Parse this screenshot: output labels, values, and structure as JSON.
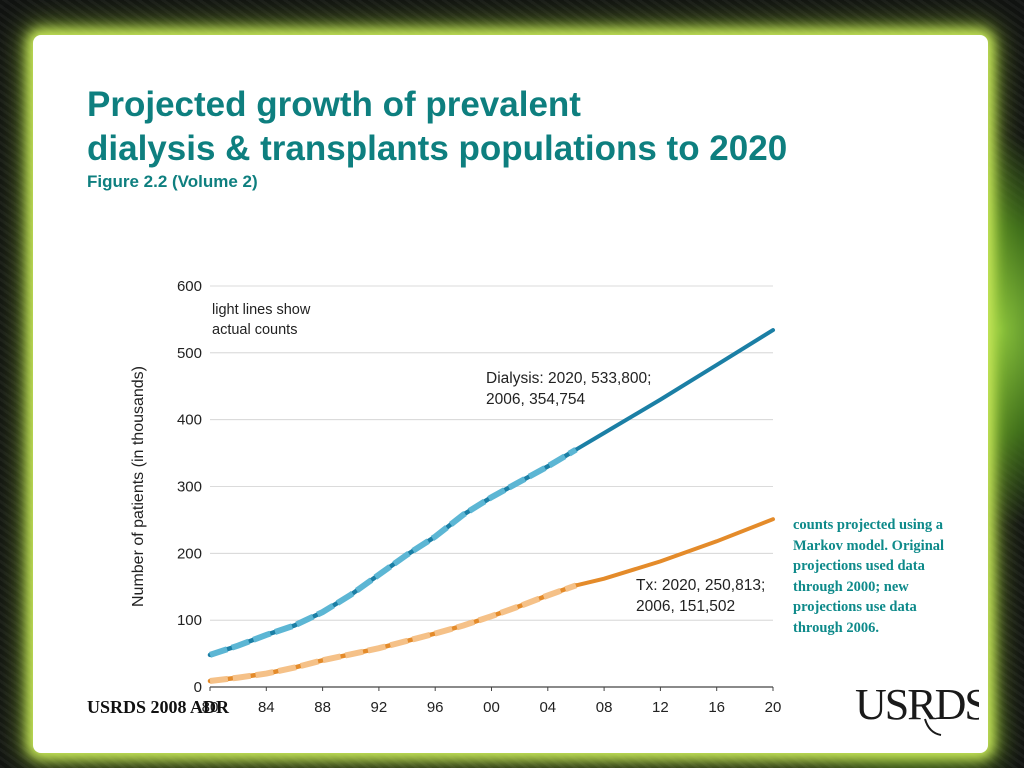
{
  "slide": {
    "title_line1": "Projected growth of prevalent",
    "title_line2": "dialysis & transplants populations to 2020",
    "subtitle": "Figure 2.2 (Volume 2)",
    "note": "counts projected using a Markov model. Original projections used data through 2000; new projections use data through 2006.",
    "footer": "USRDS 2008 ADR",
    "logo_text": "USRDS"
  },
  "colors": {
    "title": "#0e7f7f",
    "dialysis_actual": "#5cb6d4",
    "dialysis_projected": "#1b7fa5",
    "tx_actual": "#f5c188",
    "tx_projected": "#e48b2a",
    "gridline": "#cfcfcf"
  },
  "chart_data": {
    "type": "line",
    "ylabel": "Number of patients (in thousands)",
    "xlabel": "",
    "ylim": [
      0,
      600
    ],
    "yticks": [
      "0",
      "100",
      "200",
      "300",
      "400",
      "500",
      "600"
    ],
    "xticks": [
      "80",
      "84",
      "88",
      "92",
      "96",
      "00",
      "04",
      "08",
      "12",
      "16",
      "20"
    ],
    "xlim": [
      1980,
      2020
    ],
    "grid": "horizontal",
    "annotation_legend": "light lines show actual counts",
    "series": [
      {
        "name": "Dialysis",
        "label_line1": "Dialysis: 2020, 533,800;",
        "label_line2": "2006, 354,754",
        "actual": {
          "x": [
            1980,
            1982,
            1984,
            1986,
            1988,
            1990,
            1992,
            1994,
            1996,
            1998,
            2000,
            2002,
            2004,
            2006
          ],
          "y": [
            48,
            62,
            78,
            92,
            112,
            138,
            168,
            198,
            225,
            258,
            284,
            307,
            330,
            355
          ]
        },
        "projected": {
          "x": [
            2006,
            2008,
            2012,
            2016,
            2020
          ],
          "y": [
            355,
            380,
            430,
            482,
            534
          ]
        }
      },
      {
        "name": "Tx",
        "label_line1": "Tx: 2020, 250,813;",
        "label_line2": "2006, 151,502",
        "actual": {
          "x": [
            1980,
            1982,
            1984,
            1986,
            1988,
            1990,
            1992,
            1994,
            1996,
            1998,
            2000,
            2002,
            2004,
            2006
          ],
          "y": [
            9,
            14,
            20,
            29,
            40,
            49,
            58,
            69,
            80,
            92,
            106,
            121,
            137,
            152
          ],
          "values_note": ""
        },
        "projected": {
          "x": [
            2006,
            2008,
            2012,
            2016,
            2020
          ],
          "y": [
            152,
            162,
            188,
            218,
            251
          ]
        }
      }
    ]
  }
}
